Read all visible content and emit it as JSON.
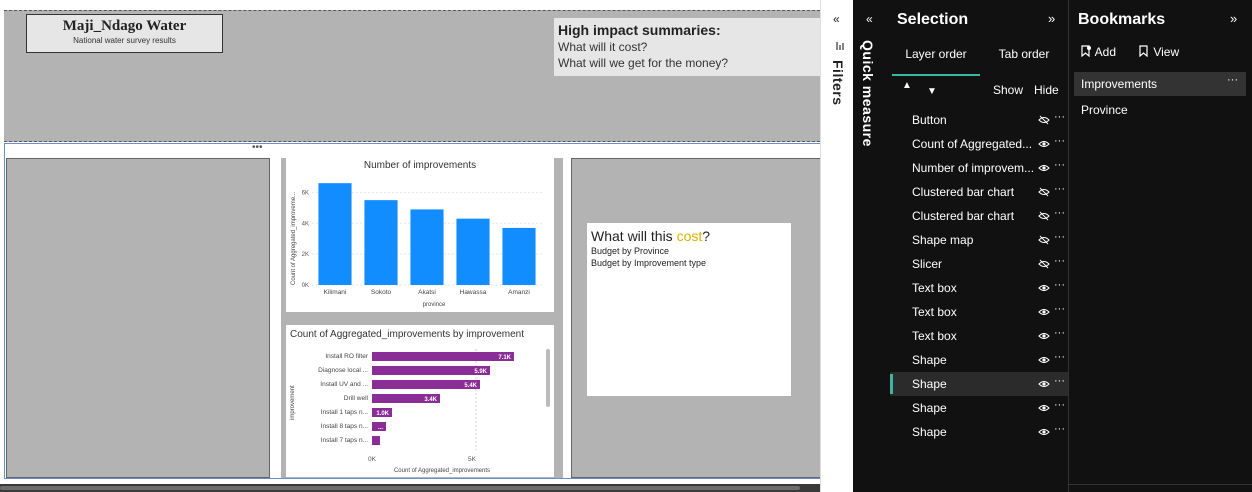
{
  "report": {
    "title": "Maji_Ndago Water",
    "subtitle": "National water survey results",
    "summary": {
      "title": "High impact summaries:",
      "lines": [
        "What will it cost?",
        "What will we get for the money?"
      ]
    },
    "cost_card": {
      "title_prefix": "What will this ",
      "title_accent": "cost",
      "title_suffix": "?",
      "lines": [
        "Budget by Province",
        "Budget by Improvement type"
      ]
    },
    "more_dots": "•••"
  },
  "chart_data": [
    {
      "type": "bar",
      "title": "Number of improvements",
      "categories": [
        "Kilimani",
        "Sokoto",
        "Akatsi",
        "Hawassa",
        "Amanzi"
      ],
      "values": [
        6600,
        5500,
        4900,
        4300,
        3700
      ],
      "xlabel": "province",
      "ylabel": "Count of Aggregated_improveme...",
      "yticks": [
        "0K",
        "2K",
        "4K",
        "6K"
      ],
      "ylim": [
        0,
        7000
      ],
      "color": "#118dff"
    },
    {
      "type": "bar",
      "orientation": "horizontal",
      "title": "Count of Aggregated_improvements by improvement",
      "categories": [
        "Install RO filter",
        "Diagnose local ...",
        "Install UV and ...",
        "Drill well",
        "Install 1 taps n...",
        "Install 8 taps n...",
        "Install 7 taps n..."
      ],
      "values": [
        7100,
        5900,
        5400,
        3400,
        1000,
        700,
        400
      ],
      "data_labels": [
        "7.1K",
        "5.9K",
        "5.4K",
        "3.4K",
        "1.0K",
        "...",
        ""
      ],
      "xlabel": "Count of Aggregated_improvements",
      "ylabel": "improvement",
      "xticks": [
        "0K",
        "5K"
      ],
      "xlim": [
        0,
        8000
      ],
      "color": "#8b2d97"
    }
  ],
  "filters_panel": {
    "label": "Filters",
    "collapse_icon": "«"
  },
  "quick_measure": {
    "label": "Quick measure",
    "collapse_icon": "«"
  },
  "selection": {
    "title": "Selection",
    "expand_icon": "»",
    "tabs": [
      "Layer order",
      "Tab order"
    ],
    "show_label": "Show",
    "hide_label": "Hide",
    "layers": [
      {
        "name": "Button",
        "visible": false
      },
      {
        "name": "Count of Aggregated...",
        "visible": true
      },
      {
        "name": "Number of improvem...",
        "visible": true
      },
      {
        "name": "Clustered bar chart",
        "visible": false
      },
      {
        "name": "Clustered bar chart",
        "visible": false
      },
      {
        "name": "Shape map",
        "visible": false
      },
      {
        "name": "Slicer",
        "visible": false
      },
      {
        "name": "Text box",
        "visible": true
      },
      {
        "name": "Text box",
        "visible": true
      },
      {
        "name": "Text box",
        "visible": true
      },
      {
        "name": "Shape",
        "visible": true
      },
      {
        "name": "Shape",
        "visible": true,
        "active": true
      },
      {
        "name": "Shape",
        "visible": true
      },
      {
        "name": "Shape",
        "visible": true
      }
    ],
    "more_icon": "···"
  },
  "bookmarks": {
    "title": "Bookmarks",
    "expand_icon": "»",
    "add_label": "Add",
    "view_label": "View",
    "items": [
      "Improvements",
      "Province"
    ],
    "more_icon": "···"
  }
}
